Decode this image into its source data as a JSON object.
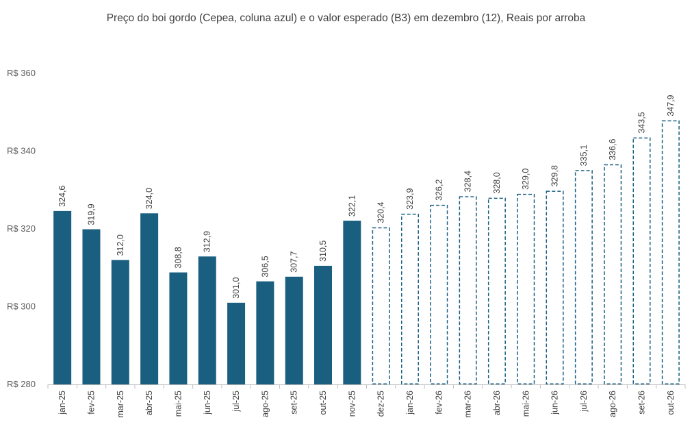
{
  "chart_data": {
    "type": "bar",
    "title": "Preço do boi gordo (Cepea, coluna azul) e o valor esperado (B3) em dezembro (12), Reais por arroba",
    "xlabel": "",
    "ylabel": "",
    "ylim": [
      280,
      360
    ],
    "yticks": [
      280,
      300,
      320,
      340,
      360
    ],
    "ytick_labels": [
      "R$ 280",
      "R$ 300",
      "R$ 320",
      "R$ 340",
      "R$ 360"
    ],
    "grid": false,
    "categories": [
      "jan-25",
      "fev-25",
      "mar-25",
      "abr-25",
      "mai-25",
      "jun-25",
      "jul-25",
      "ago-25",
      "set-25",
      "out-25",
      "nov-25",
      "dez-25",
      "jan-26",
      "fev-26",
      "mar-26",
      "abr-26",
      "mai-26",
      "jun-26",
      "jul-26",
      "ago-26",
      "set-26",
      "out-26"
    ],
    "values": [
      324.6,
      319.9,
      312.0,
      324.0,
      308.8,
      312.9,
      301.0,
      306.5,
      307.7,
      310.5,
      322.1,
      320.4,
      323.9,
      326.2,
      328.4,
      328.0,
      329.0,
      329.8,
      335.1,
      336.6,
      343.5,
      347.9
    ],
    "value_labels": [
      "324,6",
      "319,9",
      "312,0",
      "324,0",
      "308,8",
      "312,9",
      "301,0",
      "306,5",
      "307,7",
      "310,5",
      "322,1",
      "320,4",
      "323,9",
      "326,2",
      "328,4",
      "328,0",
      "329,0",
      "329,8",
      "335,1",
      "336,6",
      "343,5",
      "347,9"
    ],
    "bar_style": [
      "solid",
      "solid",
      "solid",
      "solid",
      "solid",
      "solid",
      "solid",
      "solid",
      "solid",
      "solid",
      "solid",
      "dashed",
      "dashed",
      "dashed",
      "dashed",
      "dashed",
      "dashed",
      "dashed",
      "dashed",
      "dashed",
      "dashed",
      "dashed"
    ],
    "series_meaning": {
      "solid": "Cepea",
      "dashed": "B3 expected"
    },
    "colors": {
      "bar": "#1a5f80",
      "axis": "#bfbfbf",
      "text": "#404040"
    }
  }
}
